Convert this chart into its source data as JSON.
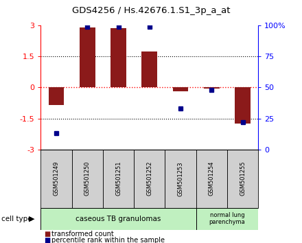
{
  "title": "GDS4256 / Hs.42676.1.S1_3p_a_at",
  "samples": [
    "GSM501249",
    "GSM501250",
    "GSM501251",
    "GSM501252",
    "GSM501253",
    "GSM501254",
    "GSM501255"
  ],
  "red_bars": [
    -0.85,
    2.9,
    2.88,
    1.75,
    -0.18,
    -0.05,
    -1.75
  ],
  "blue_dot_pct": [
    13,
    99,
    99,
    99,
    33,
    48,
    22
  ],
  "ylim": [
    -3,
    3
  ],
  "left_yticks": [
    -3,
    -1.5,
    0,
    1.5,
    3
  ],
  "left_yticklabels": [
    "-3",
    "-1.5",
    "0",
    "1.5",
    "3"
  ],
  "right_yticks_vals": [
    0,
    25,
    50,
    75,
    100
  ],
  "right_yticklabels": [
    "0",
    "25",
    "50",
    "75",
    "100%"
  ],
  "dotted_lines_black": [
    -1.5,
    1.5
  ],
  "bar_color": "#8B1A1A",
  "dot_color": "#00008B",
  "cell_type_label": "cell type",
  "group1_label": "caseous TB granulomas",
  "group1_count": 5,
  "group2_label": "normal lung\nparenchyma",
  "group2_count": 2,
  "group_color": "#c0f0c0",
  "legend_red": "transformed count",
  "legend_blue": "percentile rank within the sample",
  "bg_color": "#ffffff",
  "plot_bg": "#ffffff",
  "label_area_color": "#d0d0d0",
  "bar_width": 0.5,
  "figsize": [
    4.4,
    3.54
  ],
  "dpi": 100
}
